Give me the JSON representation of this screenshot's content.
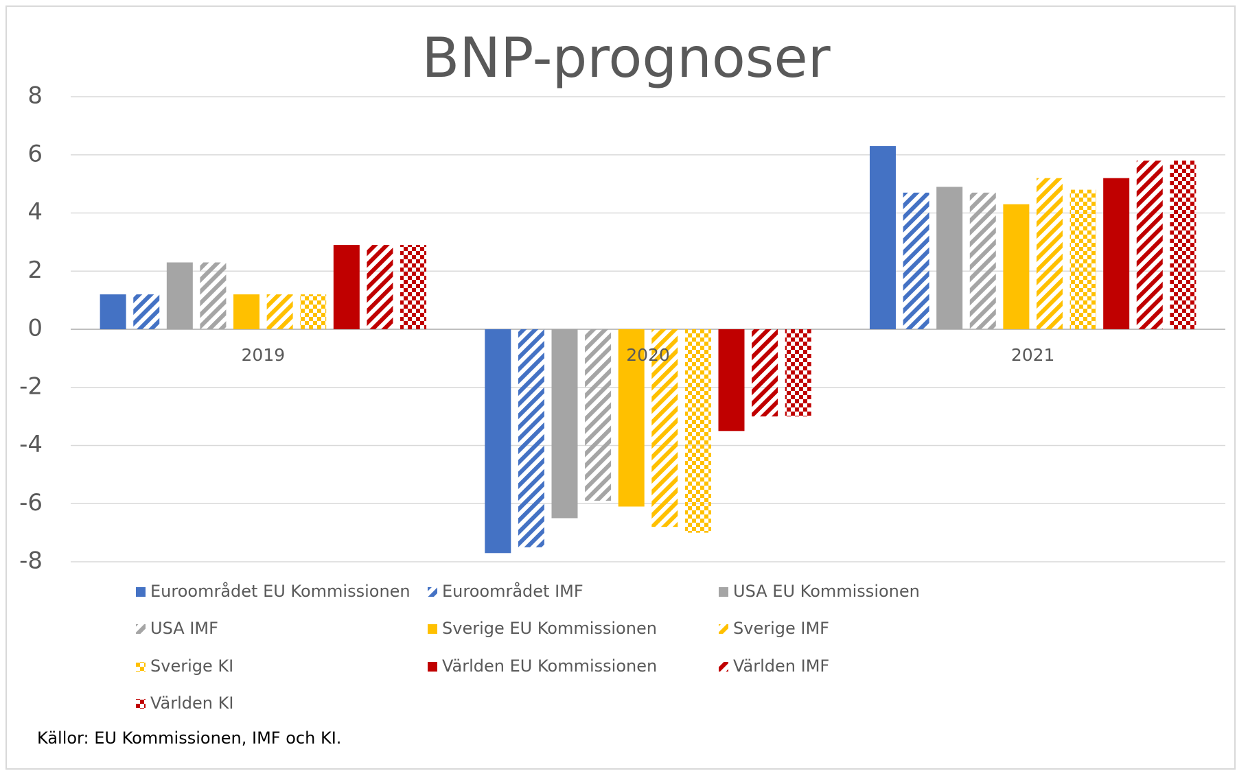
{
  "chart_data": {
    "type": "bar",
    "title": "BNP-prognoser",
    "categories": [
      "2019",
      "2020",
      "2021"
    ],
    "series": [
      {
        "name": "Euroområdet EU Kommissionen",
        "color": "#4472c4",
        "pattern": "solid",
        "values": [
          1.2,
          -7.7,
          6.3
        ]
      },
      {
        "name": "Euroområdet IMF",
        "color": "#4472c4",
        "pattern": "stripes",
        "values": [
          1.2,
          -7.5,
          4.7
        ]
      },
      {
        "name": "USA EU Kommissionen",
        "color": "#a5a5a5",
        "pattern": "solid",
        "values": [
          2.3,
          -6.5,
          4.9
        ]
      },
      {
        "name": "USA IMF",
        "color": "#a5a5a5",
        "pattern": "stripes",
        "values": [
          2.3,
          -5.9,
          4.7
        ]
      },
      {
        "name": "Sverige EU Kommissionen",
        "color": "#ffc000",
        "pattern": "solid",
        "values": [
          1.2,
          -6.1,
          4.3
        ]
      },
      {
        "name": "Sverige IMF",
        "color": "#ffc000",
        "pattern": "stripes",
        "values": [
          1.2,
          -6.8,
          5.2
        ]
      },
      {
        "name": "Sverige KI",
        "color": "#ffc000",
        "pattern": "checker",
        "values": [
          1.2,
          -7.0,
          4.8
        ]
      },
      {
        "name": "Världen EU Kommissionen",
        "color": "#c00000",
        "pattern": "solid",
        "values": [
          2.9,
          -3.5,
          5.2
        ]
      },
      {
        "name": "Världen IMF",
        "color": "#c00000",
        "pattern": "stripes",
        "values": [
          2.9,
          -3.0,
          5.8
        ]
      },
      {
        "name": "Världen KI",
        "color": "#c00000",
        "pattern": "checker",
        "values": [
          2.9,
          -3.0,
          5.8
        ]
      }
    ],
    "ylim": [
      -8,
      8
    ],
    "yticks": [
      -8,
      -6,
      -4,
      -2,
      0,
      2,
      4,
      6,
      8
    ],
    "grid": true,
    "legend": "bottom",
    "source": "Källor: EU Kommissionen, IMF och KI."
  }
}
